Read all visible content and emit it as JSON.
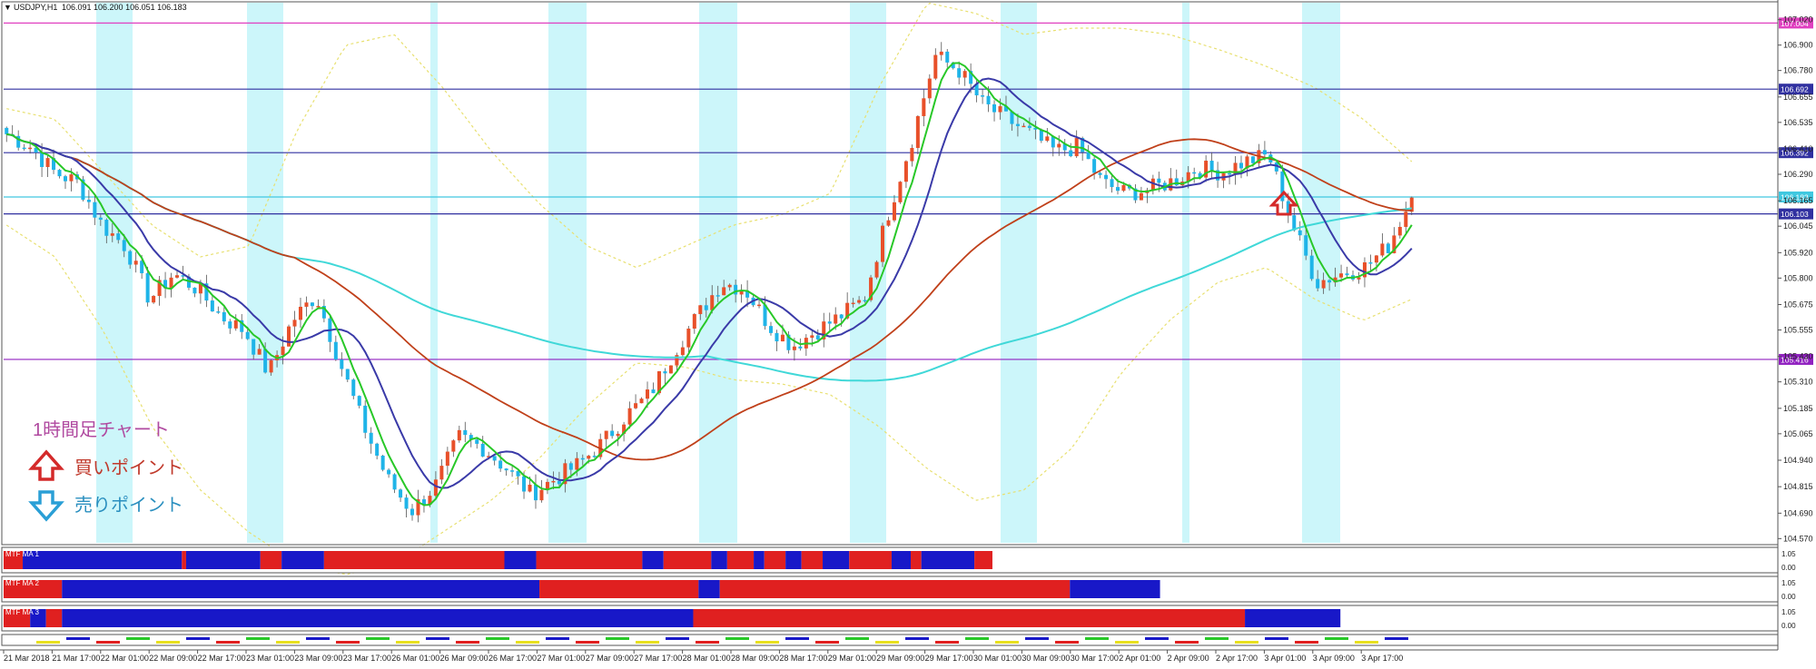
{
  "header": {
    "symbol": "USDJPY,H1",
    "ohlc": "106.091 106.200 106.051 106.183"
  },
  "legend": {
    "title": "1時間足チャート",
    "buy": "買いポイント",
    "sell": "売りポイント"
  },
  "colors": {
    "bull": "#e8502a",
    "bear": "#1fb4e8",
    "ma_fast": "#28c828",
    "ma_mid": "#3a3aa8",
    "ma_slow": "#c0401a",
    "ma_long": "#40d8d8",
    "bollinger": "#e8e070",
    "session": "#ccf6fa",
    "level_magenta": "#e040c0",
    "level_blue": "#3030a0",
    "level_cyan": "#40c8e0",
    "level_purple": "#9020c0",
    "bar_red": "#e02020",
    "bar_blue": "#1818c8",
    "buy_arrow": "#d42a2a",
    "sell_arrow": "#2a9fd6"
  },
  "chart_data": {
    "type": "candlestick",
    "symbol": "USDJPY",
    "timeframe": "H1",
    "ylim": [
      104.55,
      107.1
    ],
    "yticks": [
      107.02,
      106.9,
      106.78,
      106.655,
      106.535,
      106.41,
      106.29,
      106.165,
      106.045,
      105.92,
      105.8,
      105.675,
      105.555,
      105.43,
      105.31,
      105.185,
      105.065,
      104.94,
      104.815,
      104.69,
      104.57
    ],
    "ytick_labels": [
      "107.020",
      "106.900",
      "106.780",
      "106.655",
      "106.535",
      "106.410",
      "106.290",
      "106.165",
      "106.045",
      "105.920",
      "105.800",
      "105.675",
      "105.555",
      "105.430",
      "105.310",
      "105.185",
      "105.065",
      "104.940",
      "104.815",
      "104.690",
      "104.570"
    ],
    "xticks": [
      "21 Mar 2018",
      "21 Mar 17:00",
      "22 Mar 01:00",
      "22 Mar 09:00",
      "22 Mar 17:00",
      "23 Mar 01:00",
      "23 Mar 09:00",
      "23 Mar 17:00",
      "26 Mar 01:00",
      "26 Mar 09:00",
      "26 Mar 17:00",
      "27 Mar 01:00",
      "27 Mar 09:00",
      "27 Mar 17:00",
      "28 Mar 01:00",
      "28 Mar 09:00",
      "28 Mar 17:00",
      "29 Mar 01:00",
      "29 Mar 09:00",
      "29 Mar 17:00",
      "30 Mar 01:00",
      "30 Mar 09:00",
      "30 Mar 17:00",
      "2 Apr 01:00",
      "2 Apr 09:00",
      "2 Apr 17:00",
      "3 Apr 01:00",
      "3 Apr 09:00",
      "3 Apr 17:00"
    ],
    "levels": [
      {
        "value": 107.004,
        "label": "107.004",
        "color": "#e040c0"
      },
      {
        "value": 106.692,
        "label": "106.692",
        "color": "#3030a0"
      },
      {
        "value": 106.392,
        "label": "106.392",
        "color": "#3030a0"
      },
      {
        "value": 106.183,
        "label": "106.183",
        "color": "#40c8e0"
      },
      {
        "value": 106.103,
        "label": "106.103",
        "color": "#3030a0"
      },
      {
        "value": 105.416,
        "label": "105.416",
        "color": "#9020c0"
      }
    ],
    "price_path": [
      106.48,
      106.42,
      106.3,
      106.25,
      106.05,
      105.95,
      105.7,
      105.82,
      105.75,
      105.62,
      105.55,
      105.35,
      105.6,
      105.72,
      105.4,
      105.1,
      104.85,
      104.7,
      104.82,
      105.05,
      105.0,
      104.9,
      104.78,
      104.85,
      104.92,
      105.02,
      105.15,
      105.25,
      105.45,
      105.62,
      105.78,
      105.75,
      105.58,
      105.48,
      105.55,
      105.62,
      105.7,
      106.1,
      106.45,
      106.85,
      106.78,
      106.62,
      106.55,
      106.48,
      106.4,
      106.42,
      106.25,
      106.2,
      106.22,
      106.26,
      106.32,
      106.3,
      106.35,
      106.38,
      106.05,
      105.78,
      105.82,
      105.85,
      105.95,
      106.18
    ],
    "bollinger_upper_path": [
      106.6,
      106.55,
      106.3,
      106.05,
      105.9,
      105.95,
      106.5,
      106.9,
      106.95,
      106.7,
      106.4,
      106.15,
      105.95,
      105.85,
      105.95,
      106.05,
      106.1,
      106.2,
      106.7,
      107.1,
      107.05,
      106.95,
      106.98,
      106.98,
      106.95,
      106.88,
      106.8,
      106.7,
      106.55,
      106.35
    ],
    "bollinger_lower_path": [
      106.05,
      105.9,
      105.55,
      105.1,
      104.8,
      104.6,
      104.45,
      104.4,
      104.45,
      104.6,
      104.75,
      104.95,
      105.2,
      105.4,
      105.38,
      105.32,
      105.3,
      105.25,
      105.1,
      104.9,
      104.75,
      104.8,
      105.0,
      105.35,
      105.6,
      105.78,
      105.85,
      105.7,
      105.6,
      105.7
    ],
    "indicator_rows": [
      {
        "name": "MTF MA 1",
        "low": "0.00",
        "high": "1.05",
        "segments": [
          [
            "r",
            18
          ],
          [
            "b",
            150
          ],
          [
            "r",
            4
          ],
          [
            "b",
            70
          ],
          [
            "r",
            20
          ],
          [
            "b",
            40
          ],
          [
            "r",
            170
          ],
          [
            "b",
            30
          ],
          [
            "r",
            100
          ],
          [
            "b",
            20
          ],
          [
            "r",
            45
          ],
          [
            "b",
            15
          ],
          [
            "r",
            25
          ],
          [
            "b",
            10
          ],
          [
            "r",
            20
          ],
          [
            "b",
            15
          ],
          [
            "r",
            20
          ],
          [
            "b",
            25
          ],
          [
            "r",
            40
          ],
          [
            "b",
            18
          ],
          [
            "r",
            10
          ],
          [
            "b",
            50
          ],
          [
            "r",
            17
          ]
        ]
      },
      {
        "name": "MTF MA 2",
        "low": "0.00",
        "high": "1.05",
        "segments": [
          [
            "r",
            55
          ],
          [
            "b",
            450
          ],
          [
            "r",
            150
          ],
          [
            "b",
            20
          ],
          [
            "r",
            330
          ],
          [
            "b",
            85
          ]
        ]
      },
      {
        "name": "MTF MA 3",
        "low": "0.00",
        "high": "1.05",
        "segments": [
          [
            "r",
            25
          ],
          [
            "b",
            15
          ],
          [
            "r",
            15
          ],
          [
            "b",
            595
          ],
          [
            "r",
            520
          ],
          [
            "b",
            90
          ]
        ]
      }
    ]
  }
}
